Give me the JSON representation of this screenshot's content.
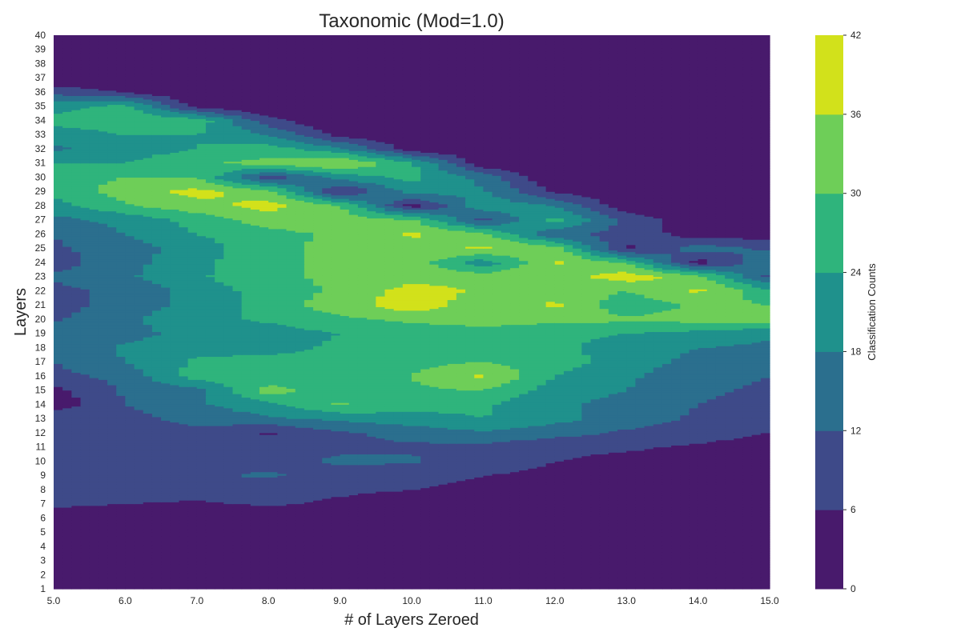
{
  "chart_data": {
    "type": "contour",
    "title": "Taxonomic (Mod=1.0)",
    "xlabel": "# of Layers Zeroed",
    "ylabel": "Layers",
    "x": [
      5.0,
      6.0,
      7.0,
      8.0,
      9.0,
      10.0,
      11.0,
      12.0,
      13.0,
      14.0,
      15.0
    ],
    "x_tick_labels": [
      "5.0",
      "6.0",
      "7.0",
      "8.0",
      "9.0",
      "10.0",
      "11.0",
      "12.0",
      "13.0",
      "14.0",
      "15.0"
    ],
    "y": [
      1,
      2,
      3,
      4,
      5,
      6,
      7,
      8,
      9,
      10,
      11,
      12,
      13,
      14,
      15,
      16,
      17,
      18,
      19,
      20,
      21,
      22,
      23,
      24,
      25,
      26,
      27,
      28,
      29,
      30,
      31,
      32,
      33,
      34,
      35,
      36,
      37,
      38,
      39,
      40
    ],
    "xlim": [
      5.0,
      15.0
    ],
    "ylim": [
      1,
      40
    ],
    "z": [
      [
        0,
        0,
        0,
        0,
        0,
        0,
        0,
        0,
        0,
        0,
        0
      ],
      [
        0,
        0,
        0,
        0,
        0,
        0,
        0,
        0,
        0,
        0,
        0
      ],
      [
        0,
        0,
        0,
        0,
        0,
        0,
        0,
        0,
        0,
        0,
        0
      ],
      [
        0,
        0,
        0,
        0,
        0,
        0,
        0,
        0,
        0,
        0,
        0
      ],
      [
        3,
        0,
        0,
        0,
        0,
        0,
        0,
        0,
        0,
        0,
        0
      ],
      [
        0,
        0,
        0,
        0,
        0,
        0,
        0,
        0,
        0,
        0,
        0
      ],
      [
        8,
        6,
        5,
        7,
        5,
        3,
        2,
        1,
        0,
        0,
        0
      ],
      [
        9,
        10,
        9,
        8,
        7,
        6,
        5,
        4,
        2,
        1,
        0
      ],
      [
        10,
        10,
        11,
        13,
        9,
        7,
        6,
        5,
        3,
        2,
        1
      ],
      [
        6,
        10,
        10,
        10,
        13,
        13,
        8,
        6,
        4,
        3,
        2
      ],
      [
        9,
        10,
        10,
        10,
        11,
        11,
        10,
        8,
        7,
        5,
        3
      ],
      [
        9,
        10,
        10,
        5,
        11,
        14,
        17,
        14,
        11,
        9,
        6
      ],
      [
        11,
        10,
        14,
        17,
        19,
        22,
        24,
        20,
        15,
        11,
        8
      ],
      [
        2,
        12,
        17,
        22,
        31,
        26,
        25,
        19,
        16,
        12,
        10
      ],
      [
        4,
        13,
        16,
        33,
        26,
        29,
        30,
        21,
        18,
        13,
        11
      ],
      [
        10,
        14,
        27,
        25,
        26,
        30,
        37,
        24,
        19,
        14,
        12
      ],
      [
        12,
        18,
        25,
        26,
        26,
        28,
        30,
        27,
        21,
        16,
        14
      ],
      [
        14,
        19,
        22,
        22,
        25,
        28,
        29,
        25,
        22,
        18,
        17
      ],
      [
        15,
        16,
        20,
        21,
        24,
        27,
        28,
        25,
        24,
        22,
        19
      ],
      [
        11,
        17,
        22,
        25,
        29,
        31,
        32,
        32,
        31,
        32,
        33
      ],
      [
        9,
        15,
        20,
        27,
        33,
        40,
        32,
        37,
        26,
        31,
        30
      ],
      [
        10,
        14,
        20,
        27,
        31,
        39,
        35,
        33,
        30,
        37,
        26
      ],
      [
        13,
        17,
        23,
        29,
        31,
        33,
        34,
        33,
        39,
        33,
        10
      ],
      [
        9,
        16,
        22,
        29,
        31,
        34,
        20,
        37,
        30,
        3,
        17
      ],
      [
        11,
        15,
        21,
        28,
        32,
        33,
        37,
        33,
        4,
        15,
        11
      ],
      [
        12,
        18,
        24,
        28,
        31,
        37,
        32,
        13,
        10,
        3,
        3
      ],
      [
        16,
        20,
        26,
        33,
        33,
        31,
        10,
        26,
        10,
        2,
        0
      ],
      [
        22,
        29,
        34,
        38,
        31,
        3,
        22,
        18,
        2,
        0,
        0
      ],
      [
        25,
        33,
        38,
        33,
        5,
        20,
        19,
        5,
        0,
        0,
        0
      ],
      [
        28,
        30,
        30,
        8,
        20,
        26,
        16,
        0,
        0,
        0,
        0
      ],
      [
        24,
        24,
        29,
        32,
        37,
        25,
        2,
        0,
        0,
        0,
        0
      ],
      [
        17,
        21,
        24,
        27,
        20,
        3,
        0,
        0,
        0,
        0,
        0
      ],
      [
        20,
        24,
        24,
        18,
        4,
        0,
        0,
        0,
        0,
        0,
        0
      ],
      [
        26,
        29,
        28,
        8,
        0,
        0,
        0,
        0,
        0,
        0,
        0
      ],
      [
        22,
        26,
        4,
        0,
        0,
        0,
        0,
        0,
        0,
        0,
        0
      ],
      [
        10,
        6,
        0,
        0,
        0,
        0,
        0,
        0,
        0,
        0,
        0
      ],
      [
        0,
        0,
        0,
        0,
        0,
        0,
        0,
        0,
        0,
        0,
        0
      ],
      [
        0,
        0,
        0,
        0,
        0,
        0,
        0,
        0,
        0,
        0,
        0
      ],
      [
        0,
        0,
        0,
        0,
        0,
        0,
        0,
        0,
        0,
        0,
        0
      ],
      [
        0,
        0,
        0,
        0,
        0,
        0,
        0,
        0,
        0,
        0,
        0
      ]
    ],
    "levels": [
      0,
      6,
      12,
      18,
      24,
      30,
      36,
      42
    ],
    "level_colors": [
      "#481a6c",
      "#3e4a89",
      "#2b6f8e",
      "#1f918c",
      "#2fb47c",
      "#6ece58",
      "#d2e11b"
    ],
    "colorbar": {
      "label": "Classification Counts",
      "ticks": [
        "0",
        "6",
        "12",
        "18",
        "24",
        "30",
        "36",
        "42"
      ]
    },
    "grid": false
  }
}
